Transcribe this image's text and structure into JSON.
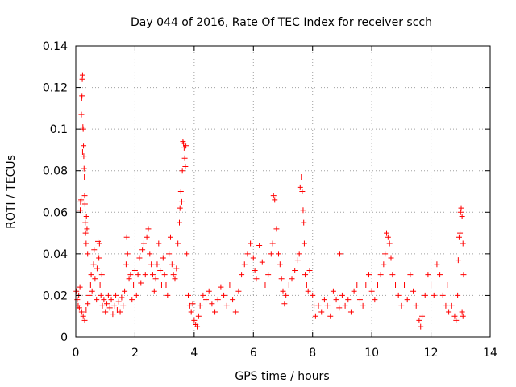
{
  "chart_data": {
    "type": "scatter",
    "title": "Day 044 of 2016, Rate Of TEC Index for receiver scch",
    "xlabel": "GPS time / hours",
    "ylabel": "ROTI / TECUs",
    "xlim": [
      0,
      14
    ],
    "ylim": [
      0,
      0.14
    ],
    "x_ticks": [
      0,
      2,
      4,
      6,
      8,
      10,
      12,
      14
    ],
    "x_tick_labels": [
      "0",
      "2",
      "4",
      "6",
      "8",
      "10",
      "12",
      "14"
    ],
    "y_ticks": [
      0,
      0.02,
      0.04,
      0.06,
      0.08,
      0.1,
      0.12,
      0.14
    ],
    "y_tick_labels": [
      "0",
      "0.02",
      "0.04",
      "0.06",
      "0.08",
      "0.1",
      "0.12",
      "0.14"
    ],
    "grid": true,
    "marker": "+",
    "marker_color": "#ff0000",
    "series": [
      {
        "name": "ROTI",
        "points": [
          [
            0.02,
            0.022
          ],
          [
            0.05,
            0.018
          ],
          [
            0.08,
            0.015
          ],
          [
            0.1,
            0.02
          ],
          [
            0.12,
            0.014
          ],
          [
            0.14,
            0.024
          ],
          [
            0.15,
            0.061
          ],
          [
            0.16,
            0.065
          ],
          [
            0.18,
            0.066
          ],
          [
            0.19,
            0.107
          ],
          [
            0.2,
            0.115
          ],
          [
            0.21,
            0.116
          ],
          [
            0.22,
            0.124
          ],
          [
            0.23,
            0.126
          ],
          [
            0.23,
            0.089
          ],
          [
            0.24,
            0.101
          ],
          [
            0.25,
            0.1
          ],
          [
            0.26,
            0.092
          ],
          [
            0.27,
            0.087
          ],
          [
            0.28,
            0.081
          ],
          [
            0.29,
            0.077
          ],
          [
            0.3,
            0.068
          ],
          [
            0.31,
            0.064
          ],
          [
            0.32,
            0.055
          ],
          [
            0.33,
            0.05
          ],
          [
            0.35,
            0.045
          ],
          [
            0.36,
            0.058
          ],
          [
            0.38,
            0.052
          ],
          [
            0.4,
            0.04
          ],
          [
            0.2,
            0.012
          ],
          [
            0.25,
            0.01
          ],
          [
            0.3,
            0.008
          ],
          [
            0.35,
            0.013
          ],
          [
            0.4,
            0.016
          ],
          [
            0.45,
            0.02
          ],
          [
            0.5,
            0.025
          ],
          [
            0.52,
            0.03
          ],
          [
            0.55,
            0.022
          ],
          [
            0.6,
            0.035
          ],
          [
            0.62,
            0.042
          ],
          [
            0.65,
            0.028
          ],
          [
            0.7,
            0.018
          ],
          [
            0.72,
            0.033
          ],
          [
            0.75,
            0.046
          ],
          [
            0.78,
            0.038
          ],
          [
            0.8,
            0.045
          ],
          [
            0.82,
            0.025
          ],
          [
            0.85,
            0.02
          ],
          [
            0.88,
            0.03
          ],
          [
            0.9,
            0.015
          ],
          [
            0.95,
            0.018
          ],
          [
            1.0,
            0.012
          ],
          [
            1.05,
            0.016
          ],
          [
            1.1,
            0.02
          ],
          [
            1.15,
            0.014
          ],
          [
            1.2,
            0.018
          ],
          [
            1.25,
            0.011
          ],
          [
            1.3,
            0.015
          ],
          [
            1.35,
            0.02
          ],
          [
            1.4,
            0.013
          ],
          [
            1.45,
            0.017
          ],
          [
            1.5,
            0.012
          ],
          [
            1.55,
            0.019
          ],
          [
            1.6,
            0.015
          ],
          [
            1.65,
            0.022
          ],
          [
            1.7,
            0.035
          ],
          [
            1.72,
            0.048
          ],
          [
            1.75,
            0.04
          ],
          [
            1.8,
            0.028
          ],
          [
            1.85,
            0.03
          ],
          [
            1.9,
            0.018
          ],
          [
            1.95,
            0.025
          ],
          [
            2.0,
            0.032
          ],
          [
            2.05,
            0.02
          ],
          [
            2.1,
            0.03
          ],
          [
            2.15,
            0.038
          ],
          [
            2.2,
            0.026
          ],
          [
            2.25,
            0.042
          ],
          [
            2.3,
            0.045
          ],
          [
            2.35,
            0.03
          ],
          [
            2.4,
            0.048
          ],
          [
            2.45,
            0.052
          ],
          [
            2.5,
            0.04
          ],
          [
            2.55,
            0.035
          ],
          [
            2.6,
            0.03
          ],
          [
            2.65,
            0.022
          ],
          [
            2.7,
            0.028
          ],
          [
            2.75,
            0.035
          ],
          [
            2.8,
            0.045
          ],
          [
            2.85,
            0.032
          ],
          [
            2.9,
            0.025
          ],
          [
            2.95,
            0.038
          ],
          [
            3.0,
            0.03
          ],
          [
            3.05,
            0.025
          ],
          [
            3.1,
            0.02
          ],
          [
            3.15,
            0.04
          ],
          [
            3.2,
            0.048
          ],
          [
            3.25,
            0.035
          ],
          [
            3.3,
            0.03
          ],
          [
            3.35,
            0.028
          ],
          [
            3.4,
            0.033
          ],
          [
            3.45,
            0.045
          ],
          [
            3.5,
            0.055
          ],
          [
            3.52,
            0.062
          ],
          [
            3.55,
            0.07
          ],
          [
            3.58,
            0.065
          ],
          [
            3.6,
            0.08
          ],
          [
            3.62,
            0.094
          ],
          [
            3.64,
            0.093
          ],
          [
            3.66,
            0.091
          ],
          [
            3.68,
            0.086
          ],
          [
            3.7,
            0.082
          ],
          [
            3.72,
            0.092
          ],
          [
            3.75,
            0.04
          ],
          [
            3.8,
            0.02
          ],
          [
            3.85,
            0.015
          ],
          [
            3.9,
            0.012
          ],
          [
            3.95,
            0.016
          ],
          [
            4.0,
            0.008
          ],
          [
            4.05,
            0.006
          ],
          [
            4.1,
            0.005
          ],
          [
            4.15,
            0.01
          ],
          [
            4.2,
            0.015
          ],
          [
            4.3,
            0.02
          ],
          [
            4.4,
            0.018
          ],
          [
            4.5,
            0.022
          ],
          [
            4.6,
            0.016
          ],
          [
            4.7,
            0.012
          ],
          [
            4.8,
            0.018
          ],
          [
            4.9,
            0.024
          ],
          [
            5.0,
            0.02
          ],
          [
            5.1,
            0.015
          ],
          [
            5.2,
            0.025
          ],
          [
            5.3,
            0.018
          ],
          [
            5.4,
            0.012
          ],
          [
            5.5,
            0.022
          ],
          [
            5.6,
            0.03
          ],
          [
            5.7,
            0.035
          ],
          [
            5.8,
            0.04
          ],
          [
            5.9,
            0.045
          ],
          [
            6.0,
            0.038
          ],
          [
            6.05,
            0.032
          ],
          [
            6.1,
            0.028
          ],
          [
            6.2,
            0.044
          ],
          [
            6.3,
            0.036
          ],
          [
            6.4,
            0.025
          ],
          [
            6.5,
            0.03
          ],
          [
            6.6,
            0.04
          ],
          [
            6.65,
            0.045
          ],
          [
            6.68,
            0.068
          ],
          [
            6.72,
            0.066
          ],
          [
            6.78,
            0.052
          ],
          [
            6.85,
            0.04
          ],
          [
            6.9,
            0.035
          ],
          [
            6.95,
            0.028
          ],
          [
            7.0,
            0.022
          ],
          [
            7.05,
            0.016
          ],
          [
            7.1,
            0.02
          ],
          [
            7.2,
            0.025
          ],
          [
            7.3,
            0.028
          ],
          [
            7.4,
            0.032
          ],
          [
            7.5,
            0.037
          ],
          [
            7.55,
            0.04
          ],
          [
            7.58,
            0.072
          ],
          [
            7.62,
            0.077
          ],
          [
            7.65,
            0.07
          ],
          [
            7.68,
            0.061
          ],
          [
            7.7,
            0.055
          ],
          [
            7.72,
            0.045
          ],
          [
            7.75,
            0.03
          ],
          [
            7.8,
            0.025
          ],
          [
            7.85,
            0.022
          ],
          [
            7.9,
            0.032
          ],
          [
            8.0,
            0.02
          ],
          [
            8.05,
            0.015
          ],
          [
            8.1,
            0.01
          ],
          [
            8.2,
            0.015
          ],
          [
            8.3,
            0.012
          ],
          [
            8.4,
            0.018
          ],
          [
            8.5,
            0.015
          ],
          [
            8.6,
            0.01
          ],
          [
            8.7,
            0.022
          ],
          [
            8.8,
            0.018
          ],
          [
            8.9,
            0.014
          ],
          [
            8.92,
            0.04
          ],
          [
            9.0,
            0.02
          ],
          [
            9.1,
            0.015
          ],
          [
            9.2,
            0.018
          ],
          [
            9.3,
            0.012
          ],
          [
            9.4,
            0.022
          ],
          [
            9.5,
            0.025
          ],
          [
            9.6,
            0.018
          ],
          [
            9.7,
            0.015
          ],
          [
            9.8,
            0.025
          ],
          [
            9.9,
            0.03
          ],
          [
            10.0,
            0.022
          ],
          [
            10.1,
            0.018
          ],
          [
            10.2,
            0.025
          ],
          [
            10.3,
            0.03
          ],
          [
            10.4,
            0.035
          ],
          [
            10.45,
            0.04
          ],
          [
            10.5,
            0.05
          ],
          [
            10.55,
            0.048
          ],
          [
            10.6,
            0.045
          ],
          [
            10.65,
            0.038
          ],
          [
            10.7,
            0.03
          ],
          [
            10.8,
            0.025
          ],
          [
            10.9,
            0.02
          ],
          [
            11.0,
            0.015
          ],
          [
            11.1,
            0.025
          ],
          [
            11.2,
            0.018
          ],
          [
            11.3,
            0.03
          ],
          [
            11.4,
            0.022
          ],
          [
            11.5,
            0.015
          ],
          [
            11.6,
            0.008
          ],
          [
            11.65,
            0.005
          ],
          [
            11.7,
            0.01
          ],
          [
            11.8,
            0.02
          ],
          [
            11.9,
            0.03
          ],
          [
            12.0,
            0.025
          ],
          [
            12.1,
            0.02
          ],
          [
            12.2,
            0.035
          ],
          [
            12.3,
            0.03
          ],
          [
            12.4,
            0.02
          ],
          [
            12.5,
            0.015
          ],
          [
            12.55,
            0.025
          ],
          [
            12.6,
            0.012
          ],
          [
            12.7,
            0.015
          ],
          [
            12.8,
            0.01
          ],
          [
            12.85,
            0.008
          ],
          [
            12.9,
            0.02
          ],
          [
            12.92,
            0.037
          ],
          [
            12.95,
            0.048
          ],
          [
            12.98,
            0.05
          ],
          [
            13.0,
            0.06
          ],
          [
            13.02,
            0.062
          ],
          [
            13.05,
            0.058
          ],
          [
            13.08,
            0.045
          ],
          [
            13.1,
            0.03
          ],
          [
            13.05,
            0.012
          ],
          [
            13.08,
            0.01
          ]
        ]
      }
    ]
  }
}
